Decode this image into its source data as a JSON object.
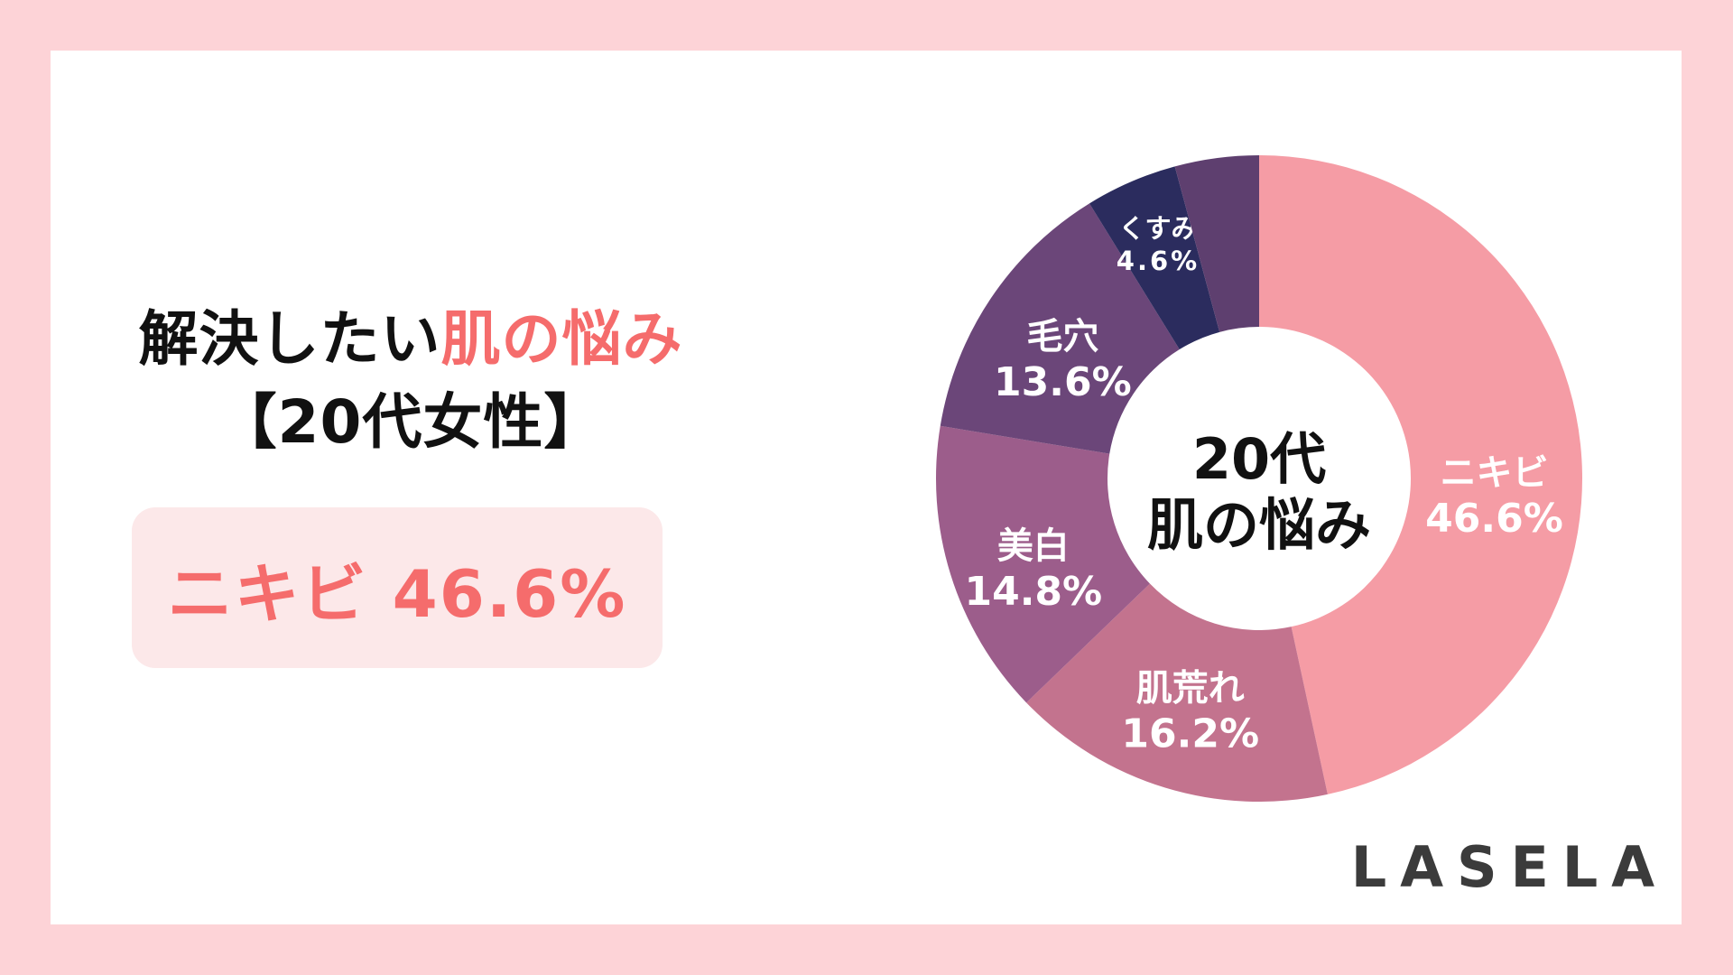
{
  "page": {
    "frame_color": "#FDD3D7",
    "card_color": "#FFFFFF"
  },
  "title": {
    "line1_black": "解決したい",
    "line1_accent": "肌の悩み",
    "line2": "【20代女性】",
    "accent_color": "#F56C6C",
    "text_color": "#111111"
  },
  "highlight": {
    "text": "ニキビ 46.6%",
    "bg_color": "#FCE8E9",
    "text_color": "#F56C6C"
  },
  "brand": {
    "logo_text": "LASELA",
    "color": "#3B3B3B"
  },
  "chart_data": {
    "type": "pie",
    "subtype": "donut",
    "title": "解決したい肌の悩み【20代女性】",
    "center_line1": "20代",
    "center_line2": "肌の悩み",
    "center_text_color": "#111111",
    "start_angle_deg": 0,
    "direction": "clockwise",
    "hole_ratio": 0.47,
    "legend": "none",
    "label_color": "#FFFFFF",
    "segments": [
      {
        "label": "ニキビ",
        "value": 46.6,
        "display": "46.6%",
        "color": "#F59CA5"
      },
      {
        "label": "肌荒れ",
        "value": 16.2,
        "display": "16.2%",
        "color": "#C3738E"
      },
      {
        "label": "美白",
        "value": 14.8,
        "display": "14.8%",
        "color": "#9C5D8B"
      },
      {
        "label": "毛穴",
        "value": 13.6,
        "display": "13.6%",
        "color": "#6B4679"
      },
      {
        "label": "くすみ",
        "value": 4.6,
        "display": "4.6%",
        "color": "#2B2C5E"
      },
      {
        "label": "",
        "value": 4.2,
        "display": "",
        "color": "#5E3F6F"
      }
    ]
  }
}
